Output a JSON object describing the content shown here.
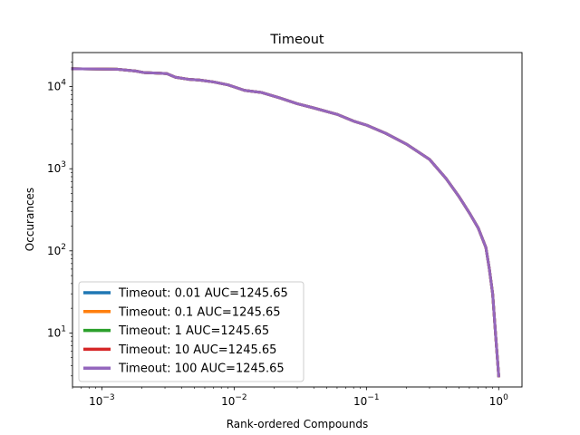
{
  "chart_data": {
    "type": "line",
    "title": "Timeout",
    "xlabel": "Rank-ordered Compounds",
    "ylabel": "Occurances",
    "xscale": "log",
    "yscale": "log",
    "xlim": [
      0.0006,
      1.5
    ],
    "ylim": [
      2.2,
      26000
    ],
    "x_ticks": [
      {
        "value": 0.001,
        "base": "10",
        "exp": "−3"
      },
      {
        "value": 0.01,
        "base": "10",
        "exp": "−2"
      },
      {
        "value": 0.1,
        "base": "10",
        "exp": "−1"
      },
      {
        "value": 1,
        "base": "10",
        "exp": "0"
      }
    ],
    "y_ticks": [
      {
        "value": 10,
        "base": "10",
        "exp": "1"
      },
      {
        "value": 100,
        "base": "10",
        "exp": "2"
      },
      {
        "value": 1000,
        "base": "10",
        "exp": "3"
      },
      {
        "value": 10000,
        "base": "10",
        "exp": "4"
      }
    ],
    "grid": false,
    "legend_position": "lower-left",
    "x": [
      0.0006,
      0.0013,
      0.0018,
      0.0021,
      0.0027,
      0.0031,
      0.0036,
      0.0045,
      0.0055,
      0.007,
      0.009,
      0.012,
      0.016,
      0.022,
      0.03,
      0.04,
      0.06,
      0.08,
      0.1,
      0.14,
      0.2,
      0.3,
      0.4,
      0.5,
      0.6,
      0.7,
      0.8,
      0.85,
      0.9,
      0.95,
      1.0
    ],
    "series": [
      {
        "name": "Timeout: 0.01 AUC=1245.65",
        "color": "#1f77b4",
        "values": [
          16500,
          16300,
          15500,
          14800,
          14600,
          14400,
          13000,
          12300,
          12000,
          11400,
          10500,
          9000,
          8500,
          7300,
          6200,
          5500,
          4600,
          3800,
          3400,
          2700,
          2000,
          1300,
          760,
          460,
          290,
          190,
          110,
          60,
          30,
          9,
          3
        ]
      },
      {
        "name": "Timeout: 0.1 AUC=1245.65",
        "color": "#ff7f0e",
        "values": [
          16500,
          16300,
          15500,
          14800,
          14600,
          14400,
          13000,
          12300,
          12000,
          11400,
          10500,
          9000,
          8500,
          7300,
          6200,
          5500,
          4600,
          3800,
          3400,
          2700,
          2000,
          1300,
          760,
          460,
          290,
          190,
          110,
          60,
          30,
          9,
          3
        ]
      },
      {
        "name": "Timeout: 1 AUC=1245.65",
        "color": "#2ca02c",
        "values": [
          16500,
          16300,
          15500,
          14800,
          14600,
          14400,
          13000,
          12300,
          12000,
          11400,
          10500,
          9000,
          8500,
          7300,
          6200,
          5500,
          4600,
          3800,
          3400,
          2700,
          2000,
          1300,
          760,
          460,
          290,
          190,
          110,
          60,
          30,
          9,
          3
        ]
      },
      {
        "name": "Timeout: 10 AUC=1245.65",
        "color": "#d62728",
        "values": [
          16500,
          16300,
          15500,
          14800,
          14600,
          14400,
          13000,
          12300,
          12000,
          11400,
          10500,
          9000,
          8500,
          7300,
          6200,
          5500,
          4600,
          3800,
          3400,
          2700,
          2000,
          1300,
          760,
          460,
          290,
          190,
          110,
          60,
          30,
          9,
          3
        ]
      },
      {
        "name": "Timeout: 100 AUC=1245.65",
        "color": "#9467bd",
        "values": [
          16500,
          16300,
          15500,
          14800,
          14600,
          14400,
          13000,
          12300,
          12000,
          11400,
          10500,
          9000,
          8500,
          7300,
          6200,
          5500,
          4600,
          3800,
          3400,
          2700,
          2000,
          1300,
          760,
          460,
          290,
          190,
          110,
          60,
          30,
          9,
          3
        ]
      }
    ]
  }
}
